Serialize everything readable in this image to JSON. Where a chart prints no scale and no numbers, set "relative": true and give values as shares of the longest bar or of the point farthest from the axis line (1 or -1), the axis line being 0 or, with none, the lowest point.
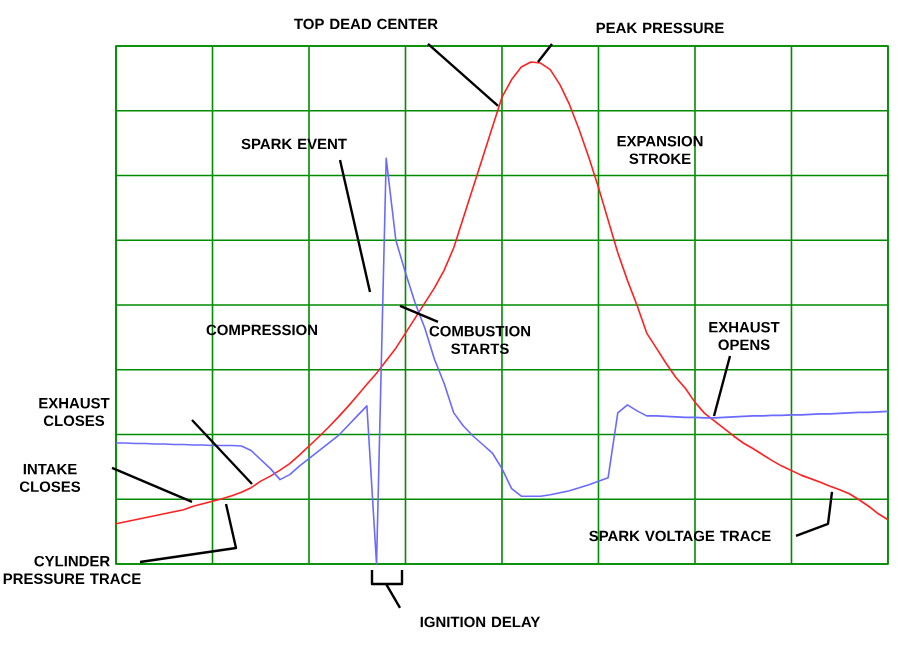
{
  "chart_data": {
    "type": "line",
    "relative": true,
    "grid": true,
    "tick_labels": false,
    "marker": "none",
    "categories": [
      null,
      null,
      null,
      null,
      null,
      null,
      null,
      null,
      null,
      null,
      null,
      null,
      null,
      null,
      null,
      null,
      null,
      null,
      null,
      null,
      null,
      null,
      null,
      null,
      null,
      null,
      null,
      null,
      null,
      null,
      null,
      null,
      null,
      null,
      null,
      null,
      null,
      null,
      null,
      null,
      null,
      null,
      null,
      null,
      null,
      null,
      null,
      null,
      null,
      null,
      null,
      null,
      null,
      null,
      null,
      null,
      null,
      null,
      null,
      null,
      null,
      null,
      null,
      null,
      null,
      null,
      null,
      null,
      null,
      null,
      null,
      null,
      null,
      null,
      null,
      null,
      null,
      null,
      null,
      null,
      null
    ],
    "series": [
      {
        "color": "#ff2020",
        "values": [
          0.08,
          0.084,
          0.088,
          0.092,
          0.096,
          0.1,
          0.104,
          0.108,
          0.115,
          0.12,
          0.125,
          0.13,
          0.136,
          0.143,
          0.152,
          0.165,
          0.175,
          0.187,
          0.2,
          0.217,
          0.235,
          0.253,
          0.272,
          0.292,
          0.313,
          0.335,
          0.358,
          0.38,
          0.405,
          0.43,
          0.46,
          0.49,
          0.52,
          0.55,
          0.585,
          0.63,
          0.69,
          0.75,
          0.81,
          0.87,
          0.93,
          0.965,
          0.99,
          1,
          0.998,
          0.985,
          0.955,
          0.915,
          0.865,
          0.81,
          0.75,
          0.685,
          0.62,
          0.565,
          0.515,
          0.46,
          0.43,
          0.4,
          0.372,
          0.35,
          0.322,
          0.3,
          0.285,
          0.27,
          0.255,
          0.241,
          0.23,
          0.218,
          0.206,
          0.195,
          0.186,
          0.177,
          0.17,
          0.163,
          0.155,
          0.148,
          0.14,
          0.128,
          0.115,
          0.1,
          0.088
        ]
      },
      {
        "color": "#6a6aff",
        "values": [
          0.241,
          0.241,
          0.24,
          0.24,
          0.239,
          0.239,
          0.238,
          0.238,
          0.237,
          0.237,
          0.236,
          0.236,
          0.236,
          0.235,
          0.226,
          0.208,
          0.19,
          0.168,
          0.178,
          0.195,
          0.21,
          0.225,
          0.24,
          0.255,
          0.275,
          0.295,
          0.315,
          0.0,
          0.808,
          0.645,
          0.58,
          0.52,
          0.47,
          0.408,
          0.36,
          0.301,
          0.275,
          0.255,
          0.238,
          0.221,
          0.19,
          0.15,
          0.135,
          0.135,
          0.135,
          0.138,
          0.142,
          0.146,
          0.152,
          0.158,
          0.165,
          0.172,
          0.301,
          0.317,
          0.305,
          0.295,
          0.295,
          0.294,
          0.293,
          0.292,
          0.292,
          0.291,
          0.291,
          0.292,
          0.293,
          0.294,
          0.295,
          0.295,
          0.296,
          0.296,
          0.297,
          0.297,
          0.298,
          0.299,
          0.299,
          0.3,
          0.301,
          0.302,
          0.302,
          0.303,
          0.304
        ]
      }
    ],
    "annotations": [
      "TOP DEAD CENTER",
      "PEAK PRESSURE",
      "EXPANSION STROKE",
      "SPARK EVENT",
      "COMPRESSION",
      "COMBUSTION STARTS",
      "EXHAUST CLOSES",
      "EXHAUST OPENS",
      "INTAKE CLOSES",
      "CYLINDER PRESSURE TRACE",
      "SPARK VOLTAGE TRACE",
      "IGNITION DELAY"
    ]
  }
}
